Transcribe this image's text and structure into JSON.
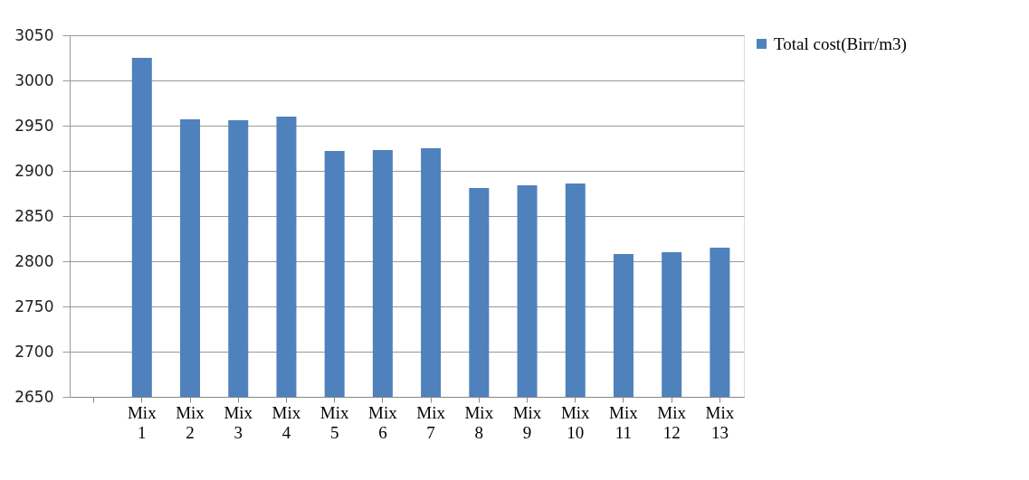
{
  "chart_data": {
    "type": "bar",
    "categories": [
      null,
      "Mix 1",
      "Mix 2",
      "Mix 3",
      "Mix 4",
      "Mix 5",
      "Mix 6",
      "Mix 7",
      "Mix 8",
      "Mix 9",
      "Mix 10",
      "Mix 11",
      "Mix 12",
      "Mix 13"
    ],
    "series": [
      {
        "name": "Total cost(Birr/m3)",
        "color": "#4f81bd",
        "values": [
          null,
          3025,
          2957,
          2956,
          2960,
          2922,
          2923,
          2925,
          2881,
          2884,
          2886,
          2808,
          2810,
          2815
        ]
      }
    ],
    "ylim": [
      2650,
      3050
    ],
    "yticks": [
      2650,
      2700,
      2750,
      2800,
      2850,
      2900,
      2950,
      3000,
      3050
    ],
    "grid": "y",
    "legend": "right"
  }
}
